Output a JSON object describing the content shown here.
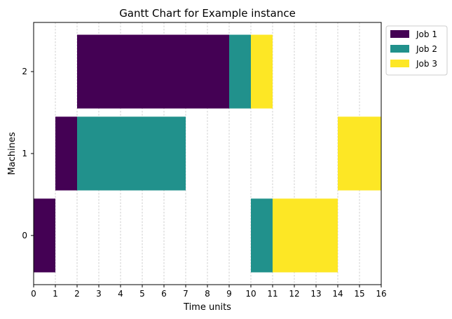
{
  "chart_data": {
    "type": "gantt",
    "title": "Gantt Chart for Example instance",
    "xlabel": "Time units",
    "ylabel": "Machines",
    "xlim": [
      0,
      16
    ],
    "ylim": [
      -0.6,
      2.6
    ],
    "x_ticks": [
      0,
      1,
      2,
      3,
      4,
      5,
      6,
      7,
      8,
      9,
      10,
      11,
      12,
      13,
      14,
      15,
      16
    ],
    "y_ticks": [
      0,
      1,
      2
    ],
    "grid": "vertical dashed",
    "legend_position": "outside top-right",
    "series": [
      {
        "name": "Job 1",
        "color": "#440154",
        "tasks": [
          {
            "machine": 2,
            "start": 2,
            "end": 9
          },
          {
            "machine": 1,
            "start": 1,
            "end": 2
          },
          {
            "machine": 0,
            "start": 0,
            "end": 1
          }
        ]
      },
      {
        "name": "Job 2",
        "color": "#21918c",
        "tasks": [
          {
            "machine": 2,
            "start": 9,
            "end": 10
          },
          {
            "machine": 1,
            "start": 2,
            "end": 7
          },
          {
            "machine": 0,
            "start": 10,
            "end": 11
          }
        ]
      },
      {
        "name": "Job 3",
        "color": "#fde725",
        "tasks": [
          {
            "machine": 2,
            "start": 10,
            "end": 11
          },
          {
            "machine": 1,
            "start": 14,
            "end": 16
          },
          {
            "machine": 0,
            "start": 11,
            "end": 14
          }
        ]
      }
    ]
  }
}
